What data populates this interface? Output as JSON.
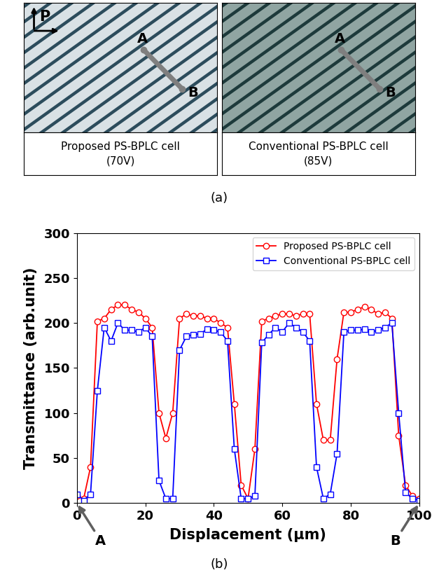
{
  "panel_labels": [
    "(a)",
    "(b)"
  ],
  "panel_a": {
    "polarizer_label": "P",
    "images": [
      {
        "caption": [
          "Proposed PS-BPLC cell",
          "(70V)"
        ],
        "points": [
          "A",
          "B"
        ]
      },
      {
        "caption": [
          "Conventional PS-BPLC cell",
          "(85V)"
        ],
        "points": [
          "A",
          "B"
        ]
      }
    ]
  },
  "chart_data": {
    "type": "line",
    "x_label": "Displacement (μm)",
    "y_label": "Transmittance (arb.unit)",
    "x": [
      0,
      2,
      4,
      6,
      8,
      10,
      12,
      14,
      16,
      18,
      20,
      22,
      24,
      26,
      28,
      30,
      32,
      34,
      36,
      38,
      40,
      42,
      44,
      46,
      48,
      50,
      52,
      54,
      56,
      58,
      60,
      62,
      64,
      66,
      68,
      70,
      72,
      74,
      76,
      78,
      80,
      82,
      84,
      86,
      88,
      90,
      92,
      94,
      96,
      98,
      100
    ],
    "series": [
      {
        "name": "Proposed PS-BPLC cell",
        "color": "#ff0000",
        "marker": "circle",
        "line_style": "solid",
        "values": [
          8,
          5,
          40,
          202,
          205,
          215,
          220,
          220,
          215,
          212,
          205,
          195,
          100,
          72,
          100,
          205,
          210,
          208,
          208,
          205,
          205,
          200,
          195,
          110,
          20,
          5,
          60,
          202,
          205,
          208,
          210,
          210,
          208,
          210,
          210,
          110,
          70,
          70,
          160,
          212,
          212,
          215,
          218,
          215,
          210,
          212,
          205,
          75,
          20,
          8,
          5
        ]
      },
      {
        "name": "Conventional PS-BPLC cell",
        "color": "#0000ff",
        "marker": "square",
        "line_style": "solid",
        "values": [
          10,
          3,
          10,
          125,
          195,
          180,
          200,
          192,
          192,
          190,
          195,
          185,
          25,
          5,
          5,
          170,
          185,
          187,
          188,
          193,
          192,
          190,
          180,
          60,
          5,
          5,
          8,
          178,
          187,
          195,
          190,
          200,
          195,
          190,
          180,
          40,
          5,
          10,
          55,
          190,
          192,
          192,
          193,
          190,
          192,
          195,
          200,
          100,
          12,
          5,
          3
        ]
      }
    ],
    "annotations": [
      {
        "text": "A",
        "x": 0,
        "y": 0
      },
      {
        "text": "B",
        "x": 100,
        "y": 0
      }
    ],
    "xlim": [
      0,
      100
    ],
    "xticks": [
      0,
      20,
      40,
      60,
      80,
      100
    ],
    "ylim": [
      0,
      300
    ],
    "yticks": [
      0,
      50,
      100,
      150,
      200,
      250,
      300
    ],
    "grid": false,
    "legend": "upper right"
  }
}
